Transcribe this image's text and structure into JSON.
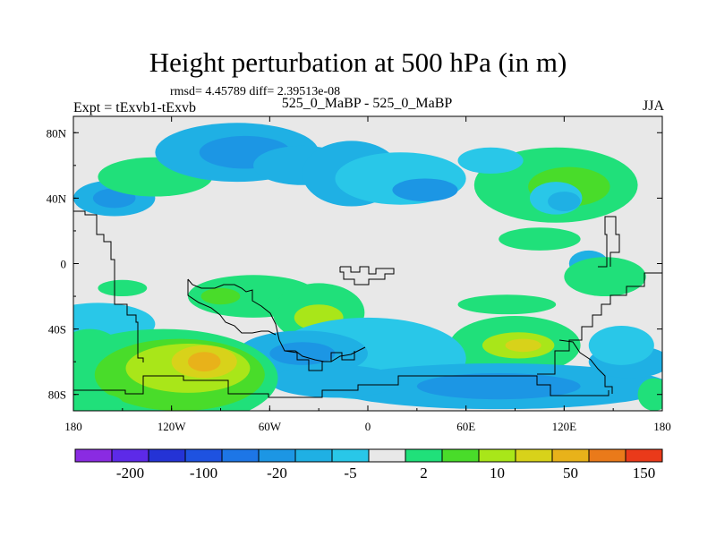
{
  "chart_data": {
    "type": "heatmap",
    "title": "Height perturbation at 500 hPa (in m)",
    "stats_text": "rmsd= 4.45789 diff= 2.39513e-08",
    "left_label": "Expt = tExvb1-tExvb",
    "center_label": "525_0_MaBP - 525_0_MaBP",
    "right_label": "JJA",
    "x_ticks": [
      "180",
      "120W",
      "60W",
      "0",
      "60E",
      "120E",
      "180"
    ],
    "x_tick_values": [
      -180,
      -120,
      -60,
      0,
      60,
      120,
      180
    ],
    "y_ticks": [
      "80N",
      "40N",
      "0",
      "40S",
      "80S"
    ],
    "y_tick_values": [
      80,
      40,
      0,
      -40,
      -80
    ],
    "xlim": [
      -180,
      180
    ],
    "ylim": [
      -90,
      90
    ],
    "colorbar": {
      "labels": [
        "-200",
        "-100",
        "-20",
        "-5",
        "2",
        "10",
        "50",
        "150"
      ],
      "label_box_index": [
        1,
        3,
        5,
        7,
        9,
        11,
        13,
        15
      ],
      "colors": [
        "#8a2be2",
        "#5d2ae8",
        "#2433d6",
        "#1e52e0",
        "#1d76e6",
        "#1c96e4",
        "#1fb0e4",
        "#29c7e8",
        "#e8e8e8",
        "#20e07a",
        "#49dc2a",
        "#a9e619",
        "#d8d21a",
        "#e8b21a",
        "#ea7a1a",
        "#ea3a1a"
      ]
    },
    "contour_blobs": [
      {
        "lon": -155,
        "lat": 40,
        "rx": 25,
        "ry": 11,
        "level": 6
      },
      {
        "lon": -155,
        "lat": 40,
        "rx": 13,
        "ry": 6,
        "level": 5
      },
      {
        "lon": -130,
        "lat": 53,
        "rx": 35,
        "ry": 12,
        "level": 9
      },
      {
        "lon": -80,
        "lat": 68,
        "rx": 50,
        "ry": 18,
        "level": 6
      },
      {
        "lon": -75,
        "lat": 68,
        "rx": 28,
        "ry": 10,
        "level": 5
      },
      {
        "lon": -40,
        "lat": 60,
        "rx": 30,
        "ry": 12,
        "level": 6
      },
      {
        "lon": -10,
        "lat": 55,
        "rx": 30,
        "ry": 20,
        "level": 6
      },
      {
        "lon": 20,
        "lat": 52,
        "rx": 40,
        "ry": 16,
        "level": 7
      },
      {
        "lon": 35,
        "lat": 45,
        "rx": 20,
        "ry": 7,
        "level": 5
      },
      {
        "lon": 115,
        "lat": 48,
        "rx": 50,
        "ry": 23,
        "level": 9
      },
      {
        "lon": 123,
        "lat": 47,
        "rx": 25,
        "ry": 12,
        "level": 10
      },
      {
        "lon": 115,
        "lat": 40,
        "rx": 16,
        "ry": 10,
        "level": 7
      },
      {
        "lon": 120,
        "lat": 38,
        "rx": 10,
        "ry": 6,
        "level": 6
      },
      {
        "lon": 75,
        "lat": 63,
        "rx": 20,
        "ry": 8,
        "level": 7
      },
      {
        "lon": 105,
        "lat": 15,
        "rx": 25,
        "ry": 7,
        "level": 9
      },
      {
        "lon": 135,
        "lat": 0,
        "rx": 12,
        "ry": 8,
        "level": 6
      },
      {
        "lon": 145,
        "lat": -8,
        "rx": 25,
        "ry": 12,
        "level": 9
      },
      {
        "lon": -150,
        "lat": -15,
        "rx": 15,
        "ry": 5,
        "level": 9
      },
      {
        "lon": -70,
        "lat": -20,
        "rx": 40,
        "ry": 13,
        "level": 9
      },
      {
        "lon": -90,
        "lat": -20,
        "rx": 12,
        "ry": 5,
        "level": 10
      },
      {
        "lon": -165,
        "lat": -37,
        "rx": 35,
        "ry": 13,
        "level": 7
      },
      {
        "lon": -30,
        "lat": -30,
        "rx": 28,
        "ry": 18,
        "level": 9
      },
      {
        "lon": -30,
        "lat": -33,
        "rx": 15,
        "ry": 8,
        "level": 11
      },
      {
        "lon": 85,
        "lat": -25,
        "rx": 30,
        "ry": 6,
        "level": 9
      },
      {
        "lon": 90,
        "lat": -50,
        "rx": 40,
        "ry": 18,
        "level": 9
      },
      {
        "lon": 92,
        "lat": -50,
        "rx": 22,
        "ry": 8,
        "level": 11
      },
      {
        "lon": 95,
        "lat": -50,
        "rx": 11,
        "ry": 4,
        "level": 12
      },
      {
        "lon": 0,
        "lat": -58,
        "rx": 60,
        "ry": 25,
        "level": 7
      },
      {
        "lon": 80,
        "lat": -75,
        "rx": 105,
        "ry": 14,
        "level": 6
      },
      {
        "lon": 80,
        "lat": -75,
        "rx": 50,
        "ry": 8,
        "level": 5
      },
      {
        "lon": -40,
        "lat": -55,
        "rx": 40,
        "ry": 14,
        "level": 6
      },
      {
        "lon": -40,
        "lat": -55,
        "rx": 20,
        "ry": 7,
        "level": 5
      },
      {
        "lon": -20,
        "lat": -72,
        "rx": 40,
        "ry": 10,
        "level": 6
      },
      {
        "lon": 160,
        "lat": -60,
        "rx": 25,
        "ry": 10,
        "level": 6
      },
      {
        "lon": 155,
        "lat": -50,
        "rx": 20,
        "ry": 12,
        "level": 7
      },
      {
        "lon": -170,
        "lat": -55,
        "rx": 20,
        "ry": 15,
        "level": 9
      },
      {
        "lon": -125,
        "lat": -70,
        "rx": 70,
        "ry": 30,
        "level": 9
      },
      {
        "lon": -115,
        "lat": -68,
        "rx": 52,
        "ry": 22,
        "level": 10
      },
      {
        "lon": -110,
        "lat": -64,
        "rx": 38,
        "ry": 15,
        "level": 11
      },
      {
        "lon": -100,
        "lat": -60,
        "rx": 20,
        "ry": 10,
        "level": 12
      },
      {
        "lon": -100,
        "lat": -60,
        "rx": 10,
        "ry": 6,
        "level": 13
      },
      {
        "lon": -170,
        "lat": -85,
        "rx": 20,
        "ry": 6,
        "level": 9
      },
      {
        "lon": 175,
        "lat": -80,
        "rx": 10,
        "ry": 10,
        "level": 9
      }
    ]
  }
}
